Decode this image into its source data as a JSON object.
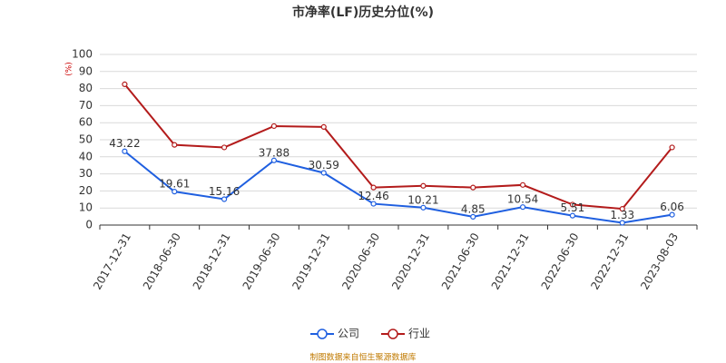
{
  "chart_data": {
    "type": "line",
    "title": "市净率(LF)历史分位(%)",
    "y_label": "(%)",
    "source": "制图数据来自恒生聚源数据库",
    "categories": [
      "2017-12-31",
      "2018-06-30",
      "2018-12-31",
      "2019-06-30",
      "2019-12-31",
      "2020-06-30",
      "2020-12-31",
      "2021-06-30",
      "2021-12-31",
      "2022-06-30",
      "2022-12-31",
      "2023-08-03"
    ],
    "series": [
      {
        "name": "公司",
        "color": "#1f5fe0",
        "values": [
          43.22,
          19.61,
          15.16,
          37.88,
          30.59,
          12.46,
          10.21,
          4.85,
          10.54,
          5.51,
          1.33,
          6.06
        ],
        "data_labels": true
      },
      {
        "name": "行业",
        "color": "#b31b1b",
        "values": [
          82.5,
          47,
          45.5,
          58,
          57.5,
          22,
          23,
          22,
          23.5,
          12,
          9.5,
          45.5
        ]
      }
    ],
    "ylim": [
      0,
      100
    ],
    "yticks": [
      0,
      10,
      20,
      30,
      40,
      50,
      60,
      70,
      80,
      90,
      100
    ],
    "grid": true,
    "legend": "bottom"
  }
}
